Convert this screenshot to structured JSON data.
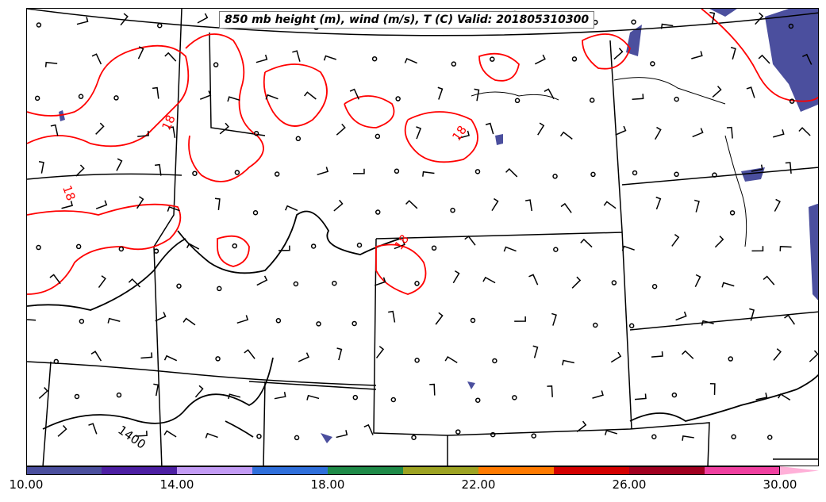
{
  "title": "850 mb height (m), wind (m/s), T (C) Valid: 201805310300",
  "map_labels": {
    "temp_contour_18_a": "18",
    "temp_contour_18_b": "18",
    "temp_contour_18_c": "18",
    "temp_contour_18_d": "18",
    "height_contour_1400": "1400"
  },
  "colors": {
    "temperature_contour": "#ff0000",
    "height_contour": "#000000",
    "state_borders": "#000000"
  },
  "colorbar": {
    "ticks": [
      "10.00",
      "14.00",
      "18.00",
      "22.00",
      "26.00",
      "30.00"
    ],
    "bins": [
      "#4b4f9e",
      "#4d1fa3",
      "#c39bf5",
      "#2f6fdb",
      "#1e8a47",
      "#9da322",
      "#ff7a00",
      "#d40000",
      "#a00020",
      "#f040a0"
    ],
    "overflow_color": "#ffb0d8"
  }
}
